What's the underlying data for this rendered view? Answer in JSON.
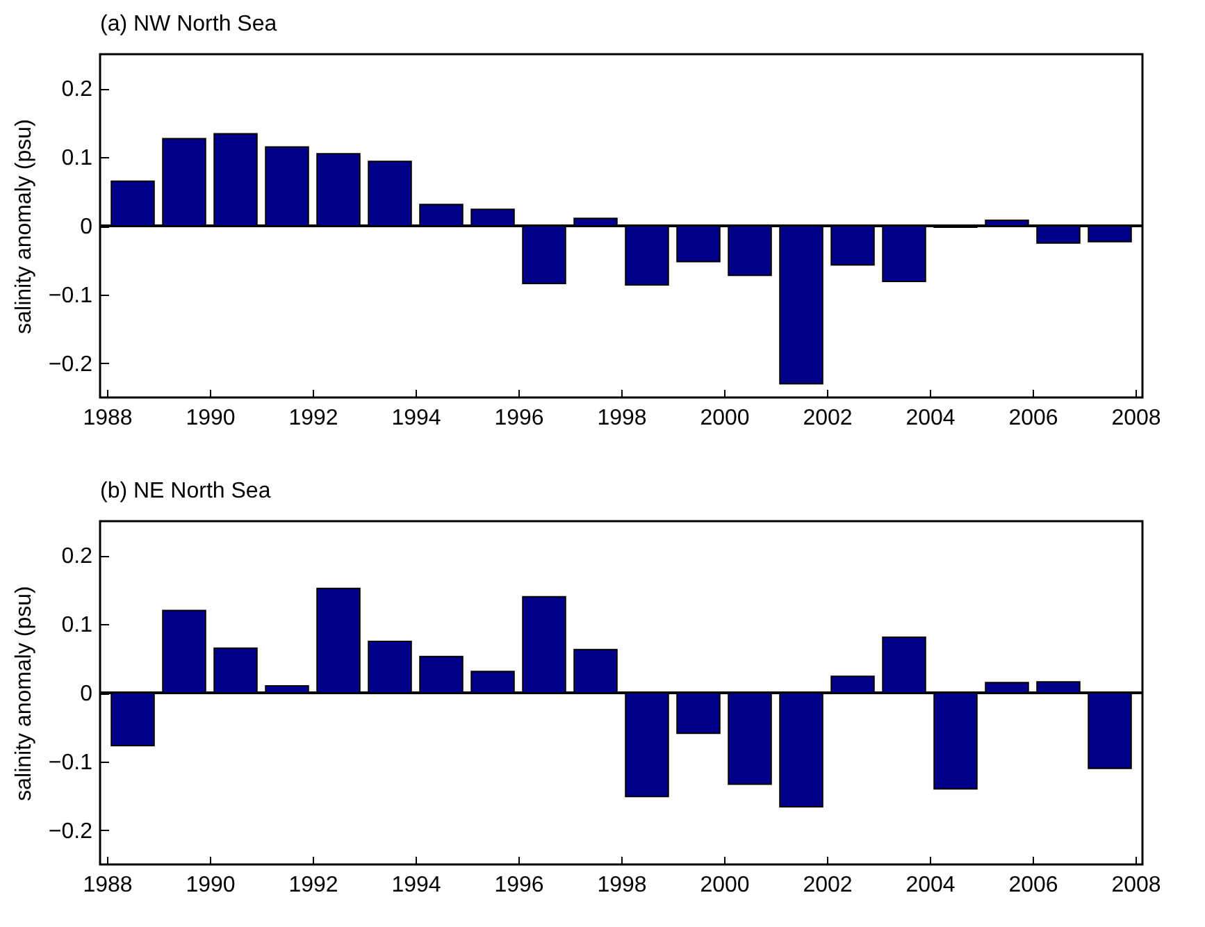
{
  "chart_data": [
    {
      "type": "bar",
      "title": "(a) NW North Sea",
      "ylabel": "salinity anomaly (psu)",
      "color": "#00008b",
      "x": [
        1988.5,
        1989.5,
        1990.5,
        1991.5,
        1992.5,
        1993.5,
        1994.5,
        1995.5,
        1996.5,
        1997.5,
        1998.5,
        1999.5,
        2000.5,
        2001.5,
        2002.5,
        2003.5,
        2004.5,
        2005.5,
        2006.5,
        2007.5
      ],
      "values": [
        0.065,
        0.127,
        0.134,
        0.115,
        0.105,
        0.094,
        0.031,
        0.024,
        -0.084,
        0.011,
        -0.086,
        -0.052,
        -0.072,
        -0.23,
        -0.057,
        -0.081,
        -0.002,
        0.008,
        -0.025,
        -0.023
      ],
      "xlim": [
        1988,
        2008
      ],
      "xticks": [
        1988,
        1990,
        1992,
        1994,
        1996,
        1998,
        2000,
        2002,
        2004,
        2006,
        2008
      ],
      "ylim": [
        -0.25,
        0.25
      ],
      "yticks": [
        -0.2,
        -0.1,
        0,
        0.1,
        0.2
      ],
      "ref_lines": [
        {
          "axis": "y",
          "value": 0
        }
      ]
    },
    {
      "type": "bar",
      "title": "(b) NE North Sea",
      "ylabel": "salinity anomaly (psu)",
      "color": "#00008b",
      "x": [
        1988.5,
        1989.5,
        1990.5,
        1991.5,
        1992.5,
        1993.5,
        1994.5,
        1995.5,
        1996.5,
        1997.5,
        1998.5,
        1999.5,
        2000.5,
        2001.5,
        2002.5,
        2003.5,
        2004.5,
        2005.5,
        2006.5,
        2007.5
      ],
      "values": [
        -0.077,
        0.12,
        0.065,
        0.01,
        0.152,
        0.075,
        0.053,
        0.031,
        0.14,
        0.063,
        -0.151,
        -0.059,
        -0.133,
        -0.166,
        0.024,
        0.081,
        -0.14,
        0.015,
        0.016,
        -0.11
      ],
      "xlim": [
        1988,
        2008
      ],
      "xticks": [
        1988,
        1990,
        1992,
        1994,
        1996,
        1998,
        2000,
        2002,
        2004,
        2006,
        2008
      ],
      "ylim": [
        -0.25,
        0.25
      ],
      "yticks": [
        -0.2,
        -0.1,
        0,
        0.1,
        0.2
      ],
      "ref_lines": [
        {
          "axis": "y",
          "value": 0
        }
      ]
    }
  ]
}
